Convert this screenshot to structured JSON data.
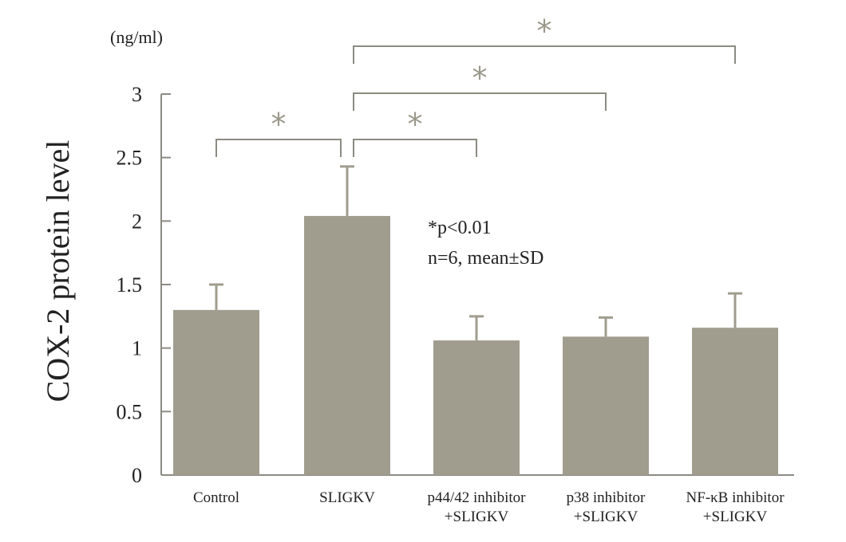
{
  "colors": {
    "bar": "#a09d8e",
    "axis": "#8c8b82",
    "star": "#9a9889",
    "text": "#222222"
  },
  "chart_data": {
    "type": "bar",
    "unit_label": "(ng/ml)",
    "ylabel": "COX-2 protein level",
    "xlabel": "",
    "title": "",
    "ylim": [
      0,
      3
    ],
    "yticks": [
      0,
      0.5,
      1,
      1.5,
      2,
      2.5,
      3
    ],
    "ytick_labels": [
      "0",
      "0.5",
      "1",
      "1.5",
      "2",
      "2.5",
      "3"
    ],
    "categories": [
      [
        "Control"
      ],
      [
        "SLIGKV"
      ],
      [
        "p44/42 inhibitor",
        "+SLIGKV"
      ],
      [
        "p38 inhibitor",
        "+SLIGKV"
      ],
      [
        "NF-κB inhibitor",
        "+SLIGKV"
      ]
    ],
    "values": [
      1.3,
      2.04,
      1.06,
      1.09,
      1.16
    ],
    "sd": [
      0.2,
      0.39,
      0.19,
      0.15,
      0.27
    ],
    "annotation_lines": [
      "*p<0.01",
      "n=6, mean±SD"
    ],
    "significance": [
      {
        "from": 0,
        "to": 1,
        "label": "*"
      },
      {
        "from": 1,
        "to": 2,
        "label": "*"
      },
      {
        "from": 1,
        "to": 3,
        "label": "*"
      },
      {
        "from": 1,
        "to": 4,
        "label": "*"
      }
    ],
    "grid": false,
    "legend": "none"
  }
}
